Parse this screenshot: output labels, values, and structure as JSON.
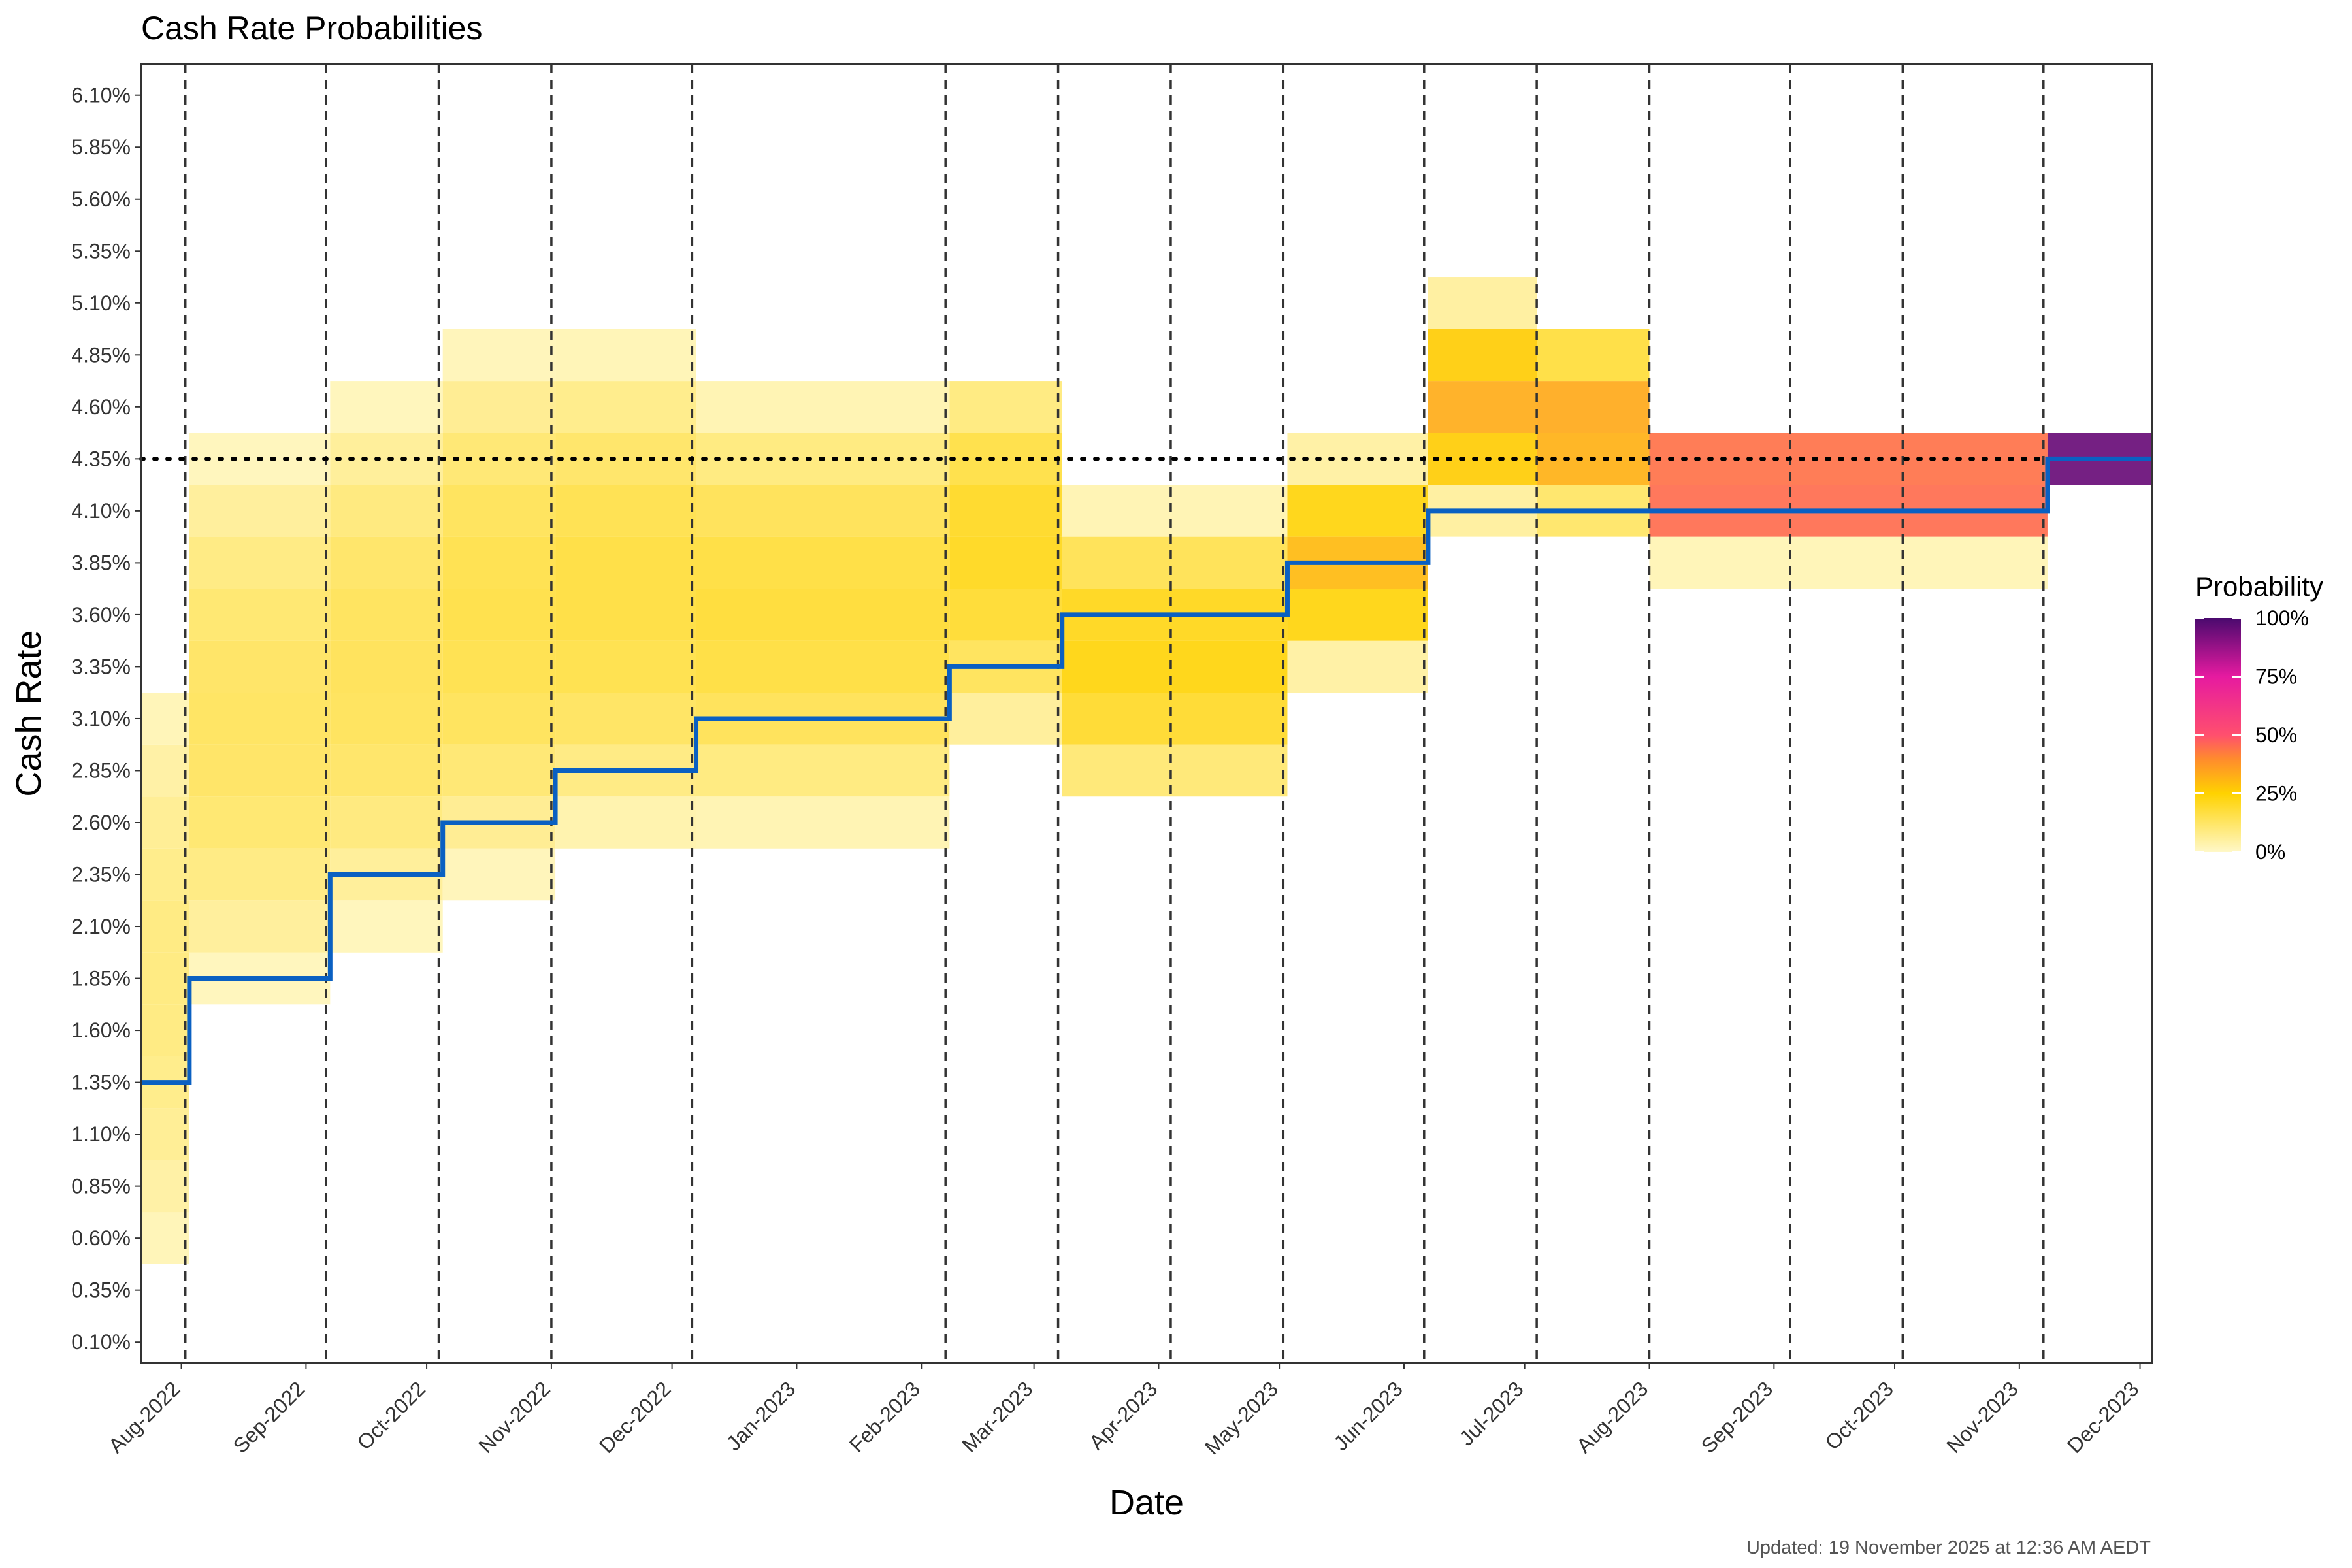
{
  "chart_data": {
    "type": "heatmap",
    "title": "Cash Rate Probabilities",
    "xlabel": "Date",
    "ylabel": "Cash Rate",
    "caption": "Updated: 19 November 2025 at 12:36 AM AEDT",
    "x_range": [
      "2022-07-22",
      "2023-12-04"
    ],
    "ylim": [
      0.0,
      6.25
    ],
    "y_ticks": [
      "0.10%",
      "0.35%",
      "0.60%",
      "0.85%",
      "1.10%",
      "1.35%",
      "1.60%",
      "1.85%",
      "2.10%",
      "2.35%",
      "2.60%",
      "2.85%",
      "3.10%",
      "3.35%",
      "3.60%",
      "3.85%",
      "4.10%",
      "4.35%",
      "4.60%",
      "4.85%",
      "5.10%",
      "5.35%",
      "5.60%",
      "5.85%",
      "6.10%"
    ],
    "x_ticks": [
      {
        "label": "Aug-2022",
        "date": "2022-08-01"
      },
      {
        "label": "Sep-2022",
        "date": "2022-09-01"
      },
      {
        "label": "Oct-2022",
        "date": "2022-10-01"
      },
      {
        "label": "Nov-2022",
        "date": "2022-11-01"
      },
      {
        "label": "Dec-2022",
        "date": "2022-12-01"
      },
      {
        "label": "Jan-2023",
        "date": "2023-01-01"
      },
      {
        "label": "Feb-2023",
        "date": "2023-02-01"
      },
      {
        "label": "Mar-2023",
        "date": "2023-03-01"
      },
      {
        "label": "Apr-2023",
        "date": "2023-04-01"
      },
      {
        "label": "May-2023",
        "date": "2023-05-01"
      },
      {
        "label": "Jun-2023",
        "date": "2023-06-01"
      },
      {
        "label": "Jul-2023",
        "date": "2023-07-01"
      },
      {
        "label": "Aug-2023",
        "date": "2023-08-01"
      },
      {
        "label": "Sep-2023",
        "date": "2023-09-01"
      },
      {
        "label": "Oct-2023",
        "date": "2023-10-01"
      },
      {
        "label": "Nov-2023",
        "date": "2023-11-01"
      },
      {
        "label": "Dec-2023",
        "date": "2023-12-01"
      }
    ],
    "meeting_dates": [
      "2022-08-02",
      "2022-09-06",
      "2022-10-04",
      "2022-11-01",
      "2022-12-06",
      "2023-02-07",
      "2023-03-07",
      "2023-04-04",
      "2023-05-02",
      "2023-06-06",
      "2023-07-04",
      "2023-08-01",
      "2023-09-05",
      "2023-10-03",
      "2023-11-07"
    ],
    "actual_rate_steps": [
      {
        "from": "2022-07-22",
        "rate": 1.35
      },
      {
        "from": "2022-08-03",
        "rate": 1.85
      },
      {
        "from": "2022-09-07",
        "rate": 2.35
      },
      {
        "from": "2022-10-05",
        "rate": 2.6
      },
      {
        "from": "2022-11-02",
        "rate": 2.85
      },
      {
        "from": "2022-12-07",
        "rate": 3.1
      },
      {
        "from": "2023-02-08",
        "rate": 3.35
      },
      {
        "from": "2023-03-08",
        "rate": 3.6
      },
      {
        "from": "2023-05-03",
        "rate": 3.85
      },
      {
        "from": "2023-06-07",
        "rate": 4.1
      },
      {
        "from": "2023-11-08",
        "rate": 4.35
      }
    ],
    "current_rate_line": 4.35,
    "heat_segments": [
      {
        "from": "2022-07-22",
        "to": "2022-08-03",
        "center": 1.85,
        "spread": 1.45,
        "peak": 0.1
      },
      {
        "from": "2022-08-03",
        "to": "2022-09-07",
        "center": 3.1,
        "spread": 1.35,
        "peak": 0.14
      },
      {
        "from": "2022-09-07",
        "to": "2022-10-05",
        "center": 3.35,
        "spread": 1.35,
        "peak": 0.15
      },
      {
        "from": "2022-10-05",
        "to": "2022-11-02",
        "center": 3.6,
        "spread": 1.35,
        "peak": 0.17
      },
      {
        "from": "2022-11-02",
        "to": "2022-12-07",
        "center": 3.7,
        "spread": 1.25,
        "peak": 0.18
      },
      {
        "from": "2022-12-07",
        "to": "2023-02-08",
        "center": 3.6,
        "spread": 1.1,
        "peak": 0.19
      },
      {
        "from": "2023-02-08",
        "to": "2023-03-08",
        "center": 3.9,
        "spread": 0.95,
        "peak": 0.22
      },
      {
        "from": "2023-03-08",
        "to": "2023-05-03",
        "center": 3.4,
        "spread": 0.75,
        "peak": 0.24
      },
      {
        "from": "2023-05-03",
        "to": "2023-06-07",
        "center": 3.85,
        "spread": 0.55,
        "peak": 0.3
      },
      {
        "from": "2023-06-07",
        "to": "2023-07-04",
        "center": 4.6,
        "spread": 0.55,
        "peak": 0.33
      },
      {
        "from": "2023-07-04",
        "to": "2023-08-01",
        "center": 4.5,
        "spread": 0.5,
        "peak": 0.35
      },
      {
        "from": "2023-08-01",
        "to": "2023-11-08",
        "center": 4.22,
        "spread": 0.38,
        "peak": 0.5
      },
      {
        "from": "2023-11-08",
        "to": "2023-12-04",
        "center": 4.35,
        "spread": 0.16,
        "peak": 0.95
      }
    ],
    "legend": {
      "title": "Probability",
      "labels": [
        "100%",
        "75%",
        "50%",
        "25%",
        "0%"
      ],
      "values": [
        1.0,
        0.75,
        0.5,
        0.25,
        0.0
      ]
    },
    "colors": {
      "low": "#fff8c8",
      "q25": "#ffd200",
      "q40": "#ff8a2e",
      "q50": "#ff4f6e",
      "q75": "#e61aa0",
      "high": "#4a0a6e",
      "rate_line": "#0a60c2",
      "reference_line": "#000000",
      "meeting_line": "#333333"
    },
    "legend_position": "right"
  }
}
